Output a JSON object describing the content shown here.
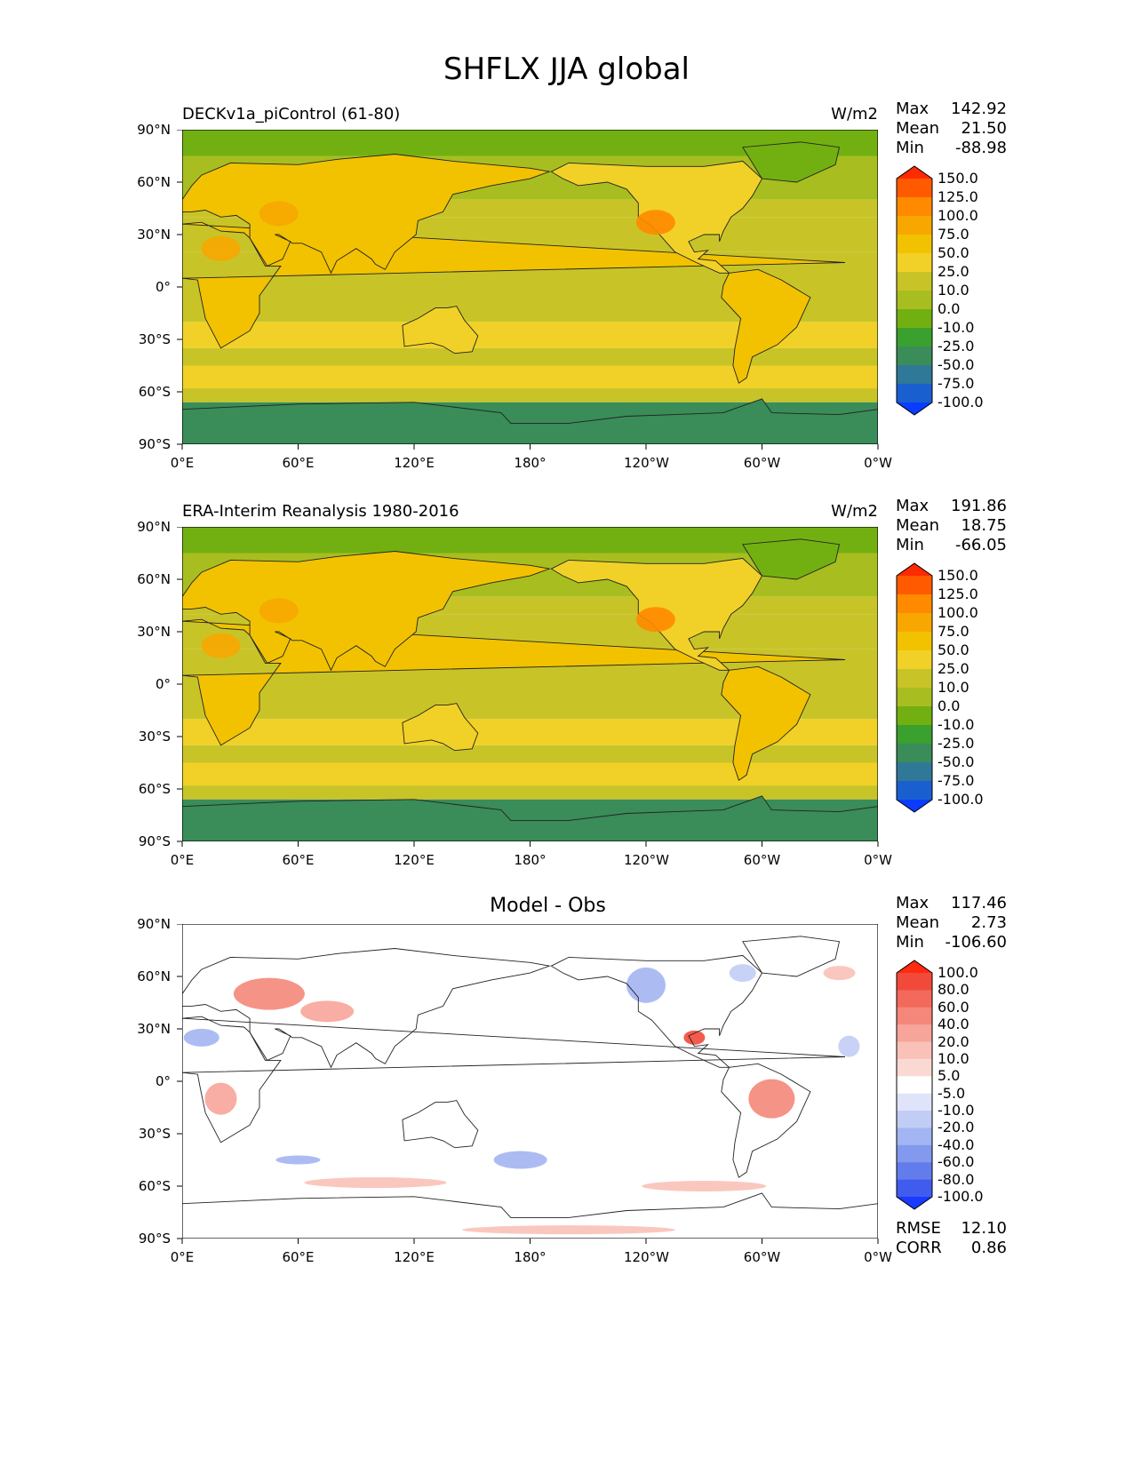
{
  "suptitle": "SHFLX JJA global",
  "x_ticks": [
    "0°E",
    "60°E",
    "120°E",
    "180°",
    "120°W",
    "60°W",
    "0°W"
  ],
  "y_ticks": [
    "90°N",
    "60°N",
    "30°N",
    "0°",
    "30°S",
    "60°S",
    "90°S"
  ],
  "chart_data": [
    {
      "type": "heatmap",
      "title": "DECKv1a_piControl (61-80)",
      "units": "W/m2",
      "stats": {
        "max_label": "Max",
        "max": "142.92",
        "mean_label": "Mean",
        "mean": "21.50",
        "min_label": "Min",
        "min": "-88.98"
      },
      "colorbar": {
        "levels": [
          "150.0",
          "125.0",
          "100.0",
          "75.0",
          "50.0",
          "25.0",
          "10.0",
          "0.0",
          "-10.0",
          "-25.0",
          "-50.0",
          "-75.0",
          "-100.0"
        ],
        "colors": [
          "#ff2a00",
          "#ff5a00",
          "#ff8a00",
          "#f7a700",
          "#f2c200",
          "#f1d127",
          "#c8c428",
          "#a8be20",
          "#72b012",
          "#3aa02e",
          "#3a8c58",
          "#2f7898",
          "#1a5fd0",
          "#0a3cff"
        ]
      },
      "x_range": [
        "0°E",
        "0°W"
      ],
      "y_range": [
        "90°S",
        "90°N"
      ]
    },
    {
      "type": "heatmap",
      "title": "ERA-Interim Reanalysis 1980-2016",
      "units": "W/m2",
      "stats": {
        "max_label": "Max",
        "max": "191.86",
        "mean_label": "Mean",
        "mean": "18.75",
        "min_label": "Min",
        "min": "-66.05"
      },
      "colorbar": {
        "levels": [
          "150.0",
          "125.0",
          "100.0",
          "75.0",
          "50.0",
          "25.0",
          "10.0",
          "0.0",
          "-10.0",
          "-25.0",
          "-50.0",
          "-75.0",
          "-100.0"
        ],
        "colors": [
          "#ff2a00",
          "#ff5a00",
          "#ff8a00",
          "#f7a700",
          "#f2c200",
          "#f1d127",
          "#c8c428",
          "#a8be20",
          "#72b012",
          "#3aa02e",
          "#3a8c58",
          "#2f7898",
          "#1a5fd0",
          "#0a3cff"
        ]
      },
      "x_range": [
        "0°E",
        "0°W"
      ],
      "y_range": [
        "90°S",
        "90°N"
      ]
    },
    {
      "type": "heatmap",
      "title": "Model - Obs",
      "units": "",
      "stats": {
        "max_label": "Max",
        "max": "117.46",
        "mean_label": "Mean",
        "mean": "2.73",
        "min_label": "Min",
        "min": "-106.60"
      },
      "metrics": {
        "rmse_label": "RMSE",
        "rmse": "12.10",
        "corr_label": "CORR",
        "corr": "0.86"
      },
      "colorbar": {
        "levels": [
          "100.0",
          "80.0",
          "60.0",
          "40.0",
          "20.0",
          "10.0",
          "5.0",
          "-5.0",
          "-10.0",
          "-20.0",
          "-40.0",
          "-60.0",
          "-80.0",
          "-100.0"
        ],
        "colors": [
          "#ff2a10",
          "#f24a3a",
          "#f36a5c",
          "#f5877a",
          "#f7a59a",
          "#f9c1b8",
          "#fbd9d3",
          "#ffffff",
          "#dfe4fa",
          "#c2cdf6",
          "#a3b5f2",
          "#8399ee",
          "#627cec",
          "#3f5cef",
          "#1a3aff"
        ]
      },
      "x_range": [
        "0°E",
        "0°W"
      ],
      "y_range": [
        "90°S",
        "90°N"
      ]
    }
  ]
}
